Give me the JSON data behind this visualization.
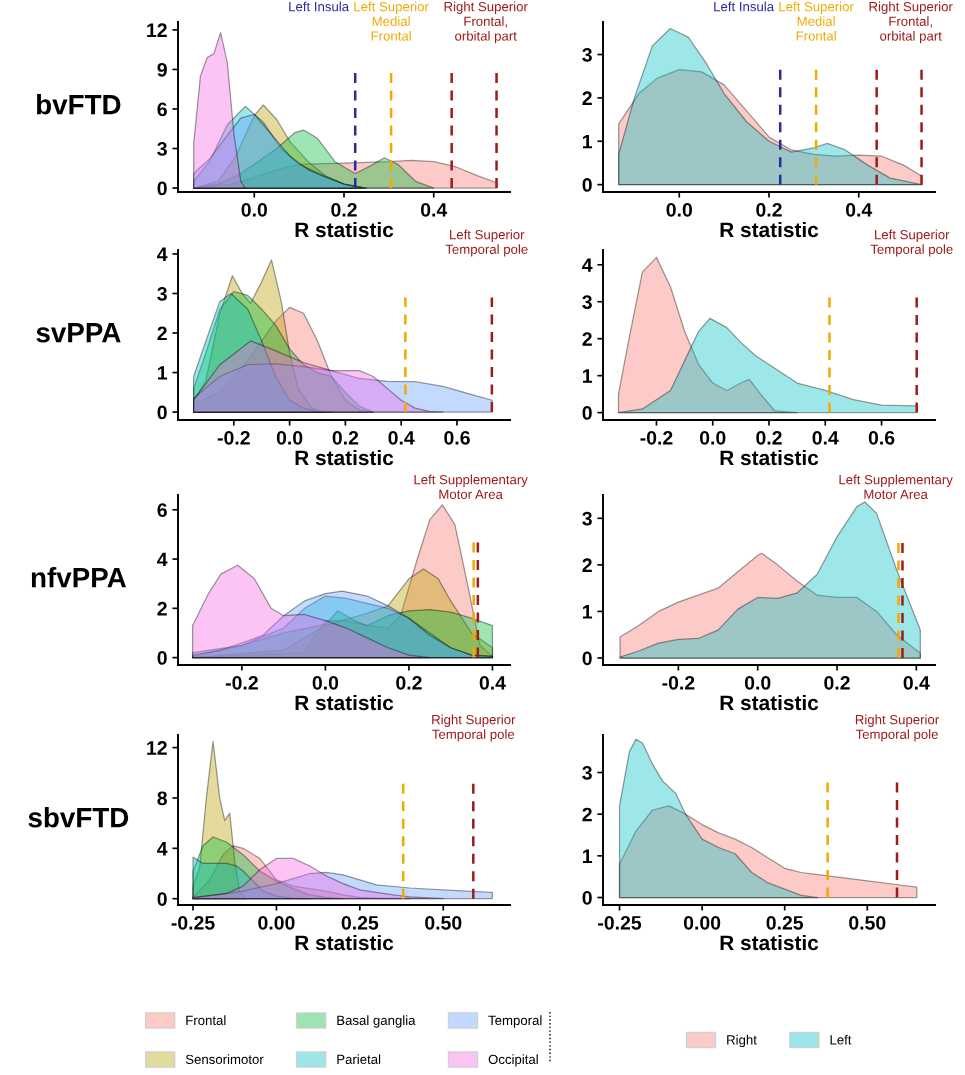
{
  "chart_data": [
    {
      "type": "area",
      "title": "bvFTD",
      "xlabel": "R statistic",
      "xlim": [
        -0.17,
        0.57
      ],
      "xticks": [
        {
          "value": 0,
          "label": "0.0"
        },
        0.2,
        0.4
      ],
      "ylim": [
        -0.3,
        12.6
      ],
      "yticks": [
        0,
        3,
        6,
        9,
        12
      ],
      "legend": "bottom",
      "series": [
        {
          "name": "Frontal",
          "color": "#f8766d",
          "x": [
            -0.135,
            -0.05,
            0.0,
            0.05,
            0.1,
            0.2,
            0.3,
            0.35,
            0.4,
            0.45,
            0.5,
            0.54
          ],
          "values": [
            0,
            0.3,
            0.8,
            1.4,
            1.8,
            1.9,
            2.0,
            2.1,
            2.0,
            1.6,
            0.9,
            0.4
          ]
        },
        {
          "name": "Sensorimotor",
          "color": "#b79f00",
          "x": [
            -0.135,
            -0.08,
            -0.04,
            0.0,
            0.02,
            0.05,
            0.08,
            0.12,
            0.16,
            0.2,
            0.25
          ],
          "values": [
            0,
            0.5,
            2.5,
            5.5,
            6.3,
            5.2,
            3.5,
            2.0,
            0.9,
            0.3,
            0
          ]
        },
        {
          "name": "Basal ganglia",
          "color": "#00ba38",
          "x": [
            -0.135,
            -0.08,
            -0.04,
            0.0,
            0.05,
            0.09,
            0.11,
            0.14,
            0.18,
            0.225,
            0.26,
            0.29,
            0.32,
            0.36,
            0.4
          ],
          "values": [
            0,
            0.3,
            0.9,
            1.8,
            3.0,
            4.2,
            4.4,
            3.8,
            2.0,
            1.1,
            1.7,
            2.3,
            1.8,
            0.5,
            0
          ]
        },
        {
          "name": "Parietal",
          "color": "#00bfc4",
          "x": [
            -0.135,
            -0.1,
            -0.06,
            -0.02,
            0.02,
            0.06,
            0.1,
            0.15,
            0.2,
            0.25
          ],
          "values": [
            0.5,
            2.0,
            4.8,
            6.2,
            5.0,
            3.0,
            1.8,
            1.0,
            0.3,
            0
          ]
        },
        {
          "name": "Temporal",
          "color": "#619cff",
          "x": [
            -0.135,
            -0.1,
            -0.06,
            -0.03,
            0.0,
            0.04,
            0.08,
            0.12,
            0.16,
            0.2,
            0.24
          ],
          "values": [
            1.1,
            2.2,
            4.0,
            5.3,
            5.6,
            4.0,
            2.4,
            1.4,
            0.8,
            0.3,
            0
          ]
        },
        {
          "name": "Occipital",
          "color": "#f564e3",
          "x": [
            -0.135,
            -0.12,
            -0.105,
            -0.09,
            -0.075,
            -0.06,
            -0.045,
            -0.03,
            -0.02
          ],
          "values": [
            3.4,
            8.5,
            9.9,
            10.2,
            11.8,
            9.5,
            4.0,
            0.5,
            0
          ]
        }
      ],
      "ref_lines": [
        {
          "axis": "x",
          "value": 0.225,
          "label": "Left Insula",
          "color": "#2b2b9c",
          "line_style": "dashed"
        },
        {
          "axis": "x",
          "value": 0.305,
          "label": "Left Superior\nMedial\nFrontal",
          "color": "#f2a900",
          "line_style": "dashed"
        },
        {
          "axis": "x",
          "value": 0.44,
          "color": "#9e1b1b",
          "line_style": "dashed"
        },
        {
          "axis": "x",
          "value": 0.54,
          "label": "Right Superior\nFrontal,\norbital part",
          "color": "#9e1b1b",
          "line_style": "dashed"
        }
      ]
    },
    {
      "type": "area",
      "xlabel": "R statistic",
      "xlim": [
        -0.17,
        0.57
      ],
      "xticks": [
        {
          "value": 0,
          "label": "0.0"
        },
        0.2,
        0.4
      ],
      "ylim": [
        -0.17,
        3.75
      ],
      "yticks": [
        0,
        1,
        2,
        3
      ],
      "legend": "bottom",
      "series": [
        {
          "name": "Right",
          "color": "#f8766d",
          "x": [
            -0.135,
            -0.09,
            -0.05,
            0.0,
            0.05,
            0.1,
            0.15,
            0.2,
            0.25,
            0.3,
            0.35,
            0.4,
            0.45,
            0.5,
            0.54
          ],
          "values": [
            1.4,
            2.1,
            2.45,
            2.65,
            2.6,
            2.3,
            1.7,
            1.1,
            0.8,
            0.7,
            0.66,
            0.68,
            0.66,
            0.45,
            0.2
          ]
        },
        {
          "name": "Left",
          "color": "#00bfc4",
          "x": [
            -0.135,
            -0.1,
            -0.06,
            -0.02,
            0.02,
            0.06,
            0.1,
            0.15,
            0.2,
            0.25,
            0.3,
            0.33,
            0.37,
            0.42,
            0.47,
            0.54
          ],
          "values": [
            0.7,
            2.0,
            3.2,
            3.6,
            3.4,
            2.8,
            2.1,
            1.45,
            1.0,
            0.75,
            0.85,
            0.95,
            0.8,
            0.45,
            0.15,
            0.0
          ]
        }
      ],
      "ref_lines": [
        {
          "axis": "x",
          "value": 0.225,
          "label": "Left Insula",
          "color": "#2b2b9c",
          "line_style": "dashed"
        },
        {
          "axis": "x",
          "value": 0.305,
          "label": "Left Superior\nMedial\nFrontal",
          "color": "#f2a900",
          "line_style": "dashed"
        },
        {
          "axis": "x",
          "value": 0.44,
          "color": "#9e1b1b",
          "line_style": "dashed"
        },
        {
          "axis": "x",
          "value": 0.54,
          "label": "Right Superior\nFrontal,\norbital part",
          "color": "#9e1b1b",
          "line_style": "dashed"
        }
      ]
    },
    {
      "type": "area",
      "title": "svPPA",
      "xlabel": "R statistic",
      "xlim": [
        -0.4,
        0.79
      ],
      "xticks": [
        -0.2,
        {
          "value": 0,
          "label": "0.0"
        },
        0.2,
        0.4,
        0.6
      ],
      "ylim": [
        -0.2,
        4.1
      ],
      "yticks": [
        0,
        1,
        2,
        3,
        4
      ],
      "series": [
        {
          "name": "Frontal",
          "color": "#f8766d",
          "x": [
            -0.344,
            -0.25,
            -0.15,
            -0.1,
            -0.05,
            0.0,
            0.05,
            0.1,
            0.15,
            0.2,
            0.25,
            0.3
          ],
          "values": [
            0.2,
            0.5,
            1.3,
            1.8,
            2.3,
            2.65,
            2.5,
            1.8,
            0.9,
            0.3,
            0.05,
            0
          ]
        },
        {
          "name": "Sensorimotor",
          "color": "#b79f00",
          "x": [
            -0.344,
            -0.3,
            -0.25,
            -0.205,
            -0.17,
            -0.14,
            -0.1,
            -0.065,
            -0.03,
            0.0,
            0.03,
            0.08,
            0.12
          ],
          "values": [
            0.3,
            0.8,
            2.5,
            3.45,
            3.0,
            2.75,
            3.3,
            3.85,
            2.8,
            1.5,
            0.6,
            0.1,
            0
          ]
        },
        {
          "name": "Basal ganglia",
          "color": "#00ba38",
          "x": [
            -0.344,
            -0.3,
            -0.25,
            -0.2,
            -0.15,
            -0.1,
            -0.05,
            0.0,
            0.05,
            0.1,
            0.15,
            0.2,
            0.25,
            0.3
          ],
          "values": [
            0.6,
            1.5,
            2.6,
            3.05,
            2.95,
            2.6,
            2.2,
            1.6,
            1.2,
            1.0,
            0.9,
            0.5,
            0.15,
            0
          ]
        },
        {
          "name": "Parietal",
          "color": "#00bfc4",
          "x": [
            -0.344,
            -0.3,
            -0.25,
            -0.21,
            -0.15,
            -0.1,
            -0.05,
            0.0,
            0.05,
            0.1,
            0.15
          ],
          "values": [
            0.9,
            1.8,
            2.8,
            3.0,
            2.6,
            1.8,
            0.9,
            0.3,
            0.1,
            0.02,
            0
          ]
        },
        {
          "name": "Temporal",
          "color": "#619cff",
          "x": [
            -0.344,
            -0.25,
            -0.15,
            -0.05,
            0.05,
            0.15,
            0.25,
            0.35,
            0.45,
            0.55,
            0.65,
            0.726
          ],
          "values": [
            0.35,
            0.9,
            1.2,
            1.22,
            1.15,
            1.05,
            0.85,
            0.78,
            0.77,
            0.65,
            0.45,
            0.3
          ]
        },
        {
          "name": "Occipital",
          "color": "#f564e3",
          "x": [
            -0.344,
            -0.25,
            -0.14,
            -0.05,
            0.05,
            0.15,
            0.25,
            0.3,
            0.35,
            0.4,
            0.45,
            0.5,
            0.55
          ],
          "values": [
            0.3,
            1.2,
            1.8,
            1.55,
            1.25,
            1.05,
            1.05,
            0.9,
            0.6,
            0.3,
            0.1,
            0.02,
            0
          ]
        }
      ],
      "ref_lines": [
        {
          "axis": "x",
          "value": 0.415,
          "color": "#f2a900",
          "line_style": "dashed"
        },
        {
          "axis": "x",
          "value": 0.725,
          "label": "Left Superior\nTemporal pole",
          "color": "#9e1b1b",
          "line_style": "dashed"
        }
      ]
    },
    {
      "type": "area",
      "xlabel": "R statistic",
      "xlim": [
        -0.39,
        0.79
      ],
      "xticks": [
        -0.2,
        {
          "value": 0,
          "label": "0.0"
        },
        0.2,
        0.4,
        0.6
      ],
      "ylim": [
        -0.2,
        4.4
      ],
      "yticks": [
        0,
        1,
        2,
        3,
        4
      ],
      "series": [
        {
          "name": "Right",
          "color": "#f8766d",
          "x": [
            -0.335,
            -0.3,
            -0.25,
            -0.2,
            -0.15,
            -0.1,
            -0.05,
            0.0,
            0.05,
            0.1,
            0.13,
            0.17,
            0.22,
            0.3
          ],
          "values": [
            0.5,
            1.9,
            3.8,
            4.2,
            3.4,
            2.2,
            1.3,
            0.8,
            0.6,
            0.8,
            0.9,
            0.5,
            0.05,
            0
          ]
        },
        {
          "name": "Left",
          "color": "#00bfc4",
          "x": [
            -0.335,
            -0.25,
            -0.15,
            -0.1,
            -0.05,
            -0.01,
            0.05,
            0.1,
            0.15,
            0.2,
            0.3,
            0.4,
            0.5,
            0.6,
            0.725
          ],
          "values": [
            0,
            0.1,
            0.6,
            1.4,
            2.2,
            2.55,
            2.3,
            1.9,
            1.55,
            1.3,
            0.8,
            0.6,
            0.35,
            0.2,
            0.18
          ]
        }
      ],
      "ref_lines": [
        {
          "axis": "x",
          "value": 0.415,
          "color": "#f2a900",
          "line_style": "dashed"
        },
        {
          "axis": "x",
          "value": 0.725,
          "label": "Left Superior\nTemporal pole",
          "color": "#9e1b1b",
          "line_style": "dashed"
        }
      ]
    },
    {
      "type": "area",
      "title": "nfvPPA",
      "xlabel": "R statistic",
      "xlim": [
        -0.353,
        0.442
      ],
      "xticks": [
        -0.2,
        {
          "value": 0,
          "label": "0.0"
        },
        0.2,
        0.4
      ],
      "ylim": [
        -0.3,
        6.6
      ],
      "yticks": [
        0,
        2,
        4,
        6
      ],
      "series": [
        {
          "name": "Frontal",
          "color": "#f8766d",
          "x": [
            -0.318,
            -0.05,
            0.0,
            0.05,
            0.1,
            0.15,
            0.18,
            0.22,
            0.25,
            0.28,
            0.31,
            0.34,
            0.37,
            0.4
          ],
          "values": [
            0,
            0.2,
            1.5,
            1.5,
            1.3,
            1.2,
            1.7,
            4.0,
            5.6,
            6.2,
            5.4,
            3.0,
            0.5,
            0.05
          ]
        },
        {
          "name": "Sensorimotor",
          "color": "#b79f00",
          "x": [
            -0.318,
            -0.1,
            0.0,
            0.1,
            0.15,
            0.2,
            0.235,
            0.27,
            0.3,
            0.35,
            0.4
          ],
          "values": [
            0,
            0.3,
            1.3,
            1.8,
            2.1,
            3.2,
            3.6,
            3.2,
            2.3,
            1.0,
            0.4
          ]
        },
        {
          "name": "Basal ganglia",
          "color": "#00ba38",
          "x": [
            -0.318,
            -0.2,
            -0.1,
            0.0,
            0.03,
            0.07,
            0.1,
            0.15,
            0.2,
            0.25,
            0.3,
            0.35,
            0.4
          ],
          "values": [
            0.05,
            0.5,
            1.0,
            1.35,
            1.9,
            1.5,
            1.3,
            1.7,
            1.9,
            1.95,
            1.85,
            1.6,
            1.3
          ]
        },
        {
          "name": "Parietal",
          "color": "#00bfc4",
          "x": [
            -0.318,
            -0.2,
            -0.1,
            -0.05,
            0.0,
            0.05,
            0.1,
            0.15,
            0.2,
            0.25,
            0.3,
            0.35,
            0.4
          ],
          "values": [
            0.2,
            0.5,
            1.2,
            2.0,
            2.5,
            2.4,
            2.2,
            2.0,
            1.6,
            1.0,
            0.4,
            0.1,
            0.05
          ]
        },
        {
          "name": "Temporal",
          "color": "#619cff",
          "x": [
            -0.318,
            -0.25,
            -0.15,
            -0.1,
            -0.05,
            0.0,
            0.04,
            0.1,
            0.15,
            0.2,
            0.25,
            0.3,
            0.35,
            0.4
          ],
          "values": [
            0.1,
            0.3,
            0.9,
            1.7,
            2.3,
            2.6,
            2.7,
            2.5,
            2.1,
            1.6,
            0.9,
            0.4,
            0.1,
            0.05
          ]
        },
        {
          "name": "Occipital",
          "color": "#f564e3",
          "x": [
            -0.318,
            -0.28,
            -0.25,
            -0.21,
            -0.17,
            -0.13,
            -0.1,
            -0.05,
            0.0,
            0.05,
            0.1,
            0.15,
            0.2,
            0.25
          ],
          "values": [
            1.3,
            2.6,
            3.4,
            3.75,
            3.2,
            2.0,
            1.7,
            1.75,
            1.5,
            1.2,
            0.8,
            0.4,
            0.1,
            0
          ]
        }
      ],
      "ref_lines": [
        {
          "axis": "x",
          "value": 0.355,
          "color": "#f2a900",
          "line_style": "dashed"
        },
        {
          "axis": "x",
          "value": 0.365,
          "label": "Left Supplementary\nMotor Area",
          "color": "#9e1b1b",
          "line_style": "dashed"
        }
      ]
    },
    {
      "type": "area",
      "xlabel": "R statistic",
      "xlim": [
        -0.39,
        0.447
      ],
      "xticks": [
        -0.2,
        {
          "value": 0,
          "label": "0.0"
        },
        0.2,
        0.4
      ],
      "ylim": [
        -0.15,
        3.5
      ],
      "yticks": [
        0,
        1,
        2,
        3
      ],
      "series": [
        {
          "name": "Right",
          "color": "#f8766d",
          "x": [
            -0.347,
            -0.3,
            -0.25,
            -0.2,
            -0.15,
            -0.1,
            -0.05,
            0.0,
            0.01,
            0.05,
            0.1,
            0.15,
            0.2,
            0.25,
            0.3,
            0.35,
            0.41
          ],
          "values": [
            0.45,
            0.7,
            1.0,
            1.2,
            1.35,
            1.5,
            1.85,
            2.2,
            2.25,
            2.0,
            1.65,
            1.35,
            1.3,
            1.3,
            1.0,
            0.5,
            0.1
          ]
        },
        {
          "name": "Left",
          "color": "#00bfc4",
          "x": [
            -0.347,
            -0.3,
            -0.25,
            -0.2,
            -0.15,
            -0.1,
            -0.05,
            0.0,
            0.05,
            0.1,
            0.15,
            0.2,
            0.25,
            0.27,
            0.3,
            0.35,
            0.41
          ],
          "values": [
            0.02,
            0.15,
            0.32,
            0.4,
            0.42,
            0.6,
            1.05,
            1.3,
            1.28,
            1.4,
            1.8,
            2.6,
            3.25,
            3.35,
            3.1,
            1.9,
            0.6
          ]
        }
      ],
      "ref_lines": [
        {
          "axis": "x",
          "value": 0.355,
          "color": "#f2a900",
          "line_style": "dashed"
        },
        {
          "axis": "x",
          "value": 0.365,
          "label": "Left Supplementary\nMotor Area",
          "color": "#9e1b1b",
          "line_style": "dashed"
        }
      ]
    },
    {
      "type": "area",
      "title": "sbvFTD",
      "xlabel": "R statistic",
      "xlim": [
        -0.295,
        0.7
      ],
      "xticks": [
        {
          "value": -0.25,
          "label": "-0.25"
        },
        {
          "value": 0,
          "label": "0.00"
        },
        {
          "value": 0.25,
          "label": "0.25"
        },
        {
          "value": 0.5,
          "label": "0.50"
        }
      ],
      "ylim": [
        -0.5,
        13.0
      ],
      "yticks": [
        0,
        4,
        8,
        12
      ],
      "series": [
        {
          "name": "Frontal",
          "color": "#f8766d",
          "x": [
            -0.25,
            -0.2,
            -0.16,
            -0.13,
            -0.1,
            -0.05,
            0.0,
            0.05,
            0.1,
            0.15,
            0.2,
            0.25,
            0.3,
            0.4
          ],
          "values": [
            0.1,
            1.5,
            3.5,
            4.2,
            4.0,
            3.2,
            1.5,
            1.0,
            0.8,
            0.6,
            0.3,
            0.1,
            0.05,
            0
          ]
        },
        {
          "name": "Sensorimotor",
          "color": "#b79f00",
          "x": [
            -0.25,
            -0.23,
            -0.21,
            -0.19,
            -0.17,
            -0.155,
            -0.14,
            -0.125,
            -0.11,
            -0.09
          ],
          "values": [
            1.0,
            2.5,
            8.0,
            12.5,
            8.0,
            6.2,
            6.8,
            3.0,
            0.5,
            0
          ]
        },
        {
          "name": "Basal ganglia",
          "color": "#00ba38",
          "x": [
            -0.25,
            -0.22,
            -0.19,
            -0.15,
            -0.1,
            -0.05,
            0.0,
            0.05,
            0.1,
            0.15,
            0.2
          ],
          "values": [
            2.2,
            4.2,
            4.9,
            4.5,
            3.5,
            2.2,
            1.4,
            0.8,
            0.3,
            0.1,
            0
          ]
        },
        {
          "name": "Parietal",
          "color": "#00bfc4",
          "x": [
            -0.25,
            -0.22,
            -0.18,
            -0.15,
            -0.12,
            -0.1,
            -0.07,
            -0.04,
            0.0,
            0.05,
            0.1
          ],
          "values": [
            3.3,
            2.8,
            2.8,
            2.8,
            2.6,
            2.2,
            1.4,
            0.6,
            0.2,
            0.05,
            0
          ]
        },
        {
          "name": "Temporal",
          "color": "#619cff",
          "x": [
            -0.25,
            -0.1,
            0.0,
            0.05,
            0.1,
            0.15,
            0.2,
            0.25,
            0.3,
            0.4,
            0.5,
            0.647
          ],
          "values": [
            0.05,
            0.6,
            1.2,
            1.6,
            2.0,
            2.1,
            1.9,
            1.5,
            1.1,
            0.85,
            0.7,
            0.5
          ]
        },
        {
          "name": "Occipital",
          "color": "#f564e3",
          "x": [
            -0.25,
            -0.15,
            -0.1,
            -0.05,
            0.0,
            0.05,
            0.1,
            0.15,
            0.2,
            0.25,
            0.3,
            0.35,
            0.4,
            0.5
          ],
          "values": [
            0.1,
            0.4,
            1.0,
            2.3,
            3.2,
            3.2,
            2.6,
            1.8,
            1.2,
            0.7,
            0.5,
            0.3,
            0.15,
            0
          ]
        }
      ],
      "ref_lines": [
        {
          "axis": "x",
          "value": 0.38,
          "color": "#f2a900",
          "line_style": "dashed"
        },
        {
          "axis": "x",
          "value": 0.59,
          "label": "Right Superior\nTemporal pole",
          "color": "#9e1b1b",
          "line_style": "dashed"
        }
      ]
    },
    {
      "type": "area",
      "xlabel": "R statistic",
      "xlim": [
        -0.3,
        0.705
      ],
      "xticks": [
        {
          "value": -0.25,
          "label": "-0.25"
        },
        {
          "value": 0,
          "label": "0.00"
        },
        {
          "value": 0.25,
          "label": "0.25"
        },
        {
          "value": 0.5,
          "label": "0.50"
        }
      ],
      "ylim": [
        -0.18,
        3.9
      ],
      "yticks": [
        0,
        1,
        2,
        3
      ],
      "series": [
        {
          "name": "Right",
          "color": "#f8766d",
          "x": [
            -0.25,
            -0.2,
            -0.15,
            -0.1,
            -0.05,
            0.0,
            0.05,
            0.1,
            0.15,
            0.2,
            0.25,
            0.3,
            0.35,
            0.4,
            0.5,
            0.6,
            0.65
          ],
          "values": [
            0.8,
            1.6,
            2.1,
            2.2,
            2.0,
            1.75,
            1.55,
            1.4,
            1.2,
            0.95,
            0.7,
            0.6,
            0.55,
            0.5,
            0.4,
            0.3,
            0.25
          ]
        },
        {
          "name": "Left",
          "color": "#00bfc4",
          "x": [
            -0.25,
            -0.22,
            -0.2,
            -0.18,
            -0.15,
            -0.12,
            -0.08,
            -0.05,
            0.0,
            0.05,
            0.1,
            0.15,
            0.2,
            0.25,
            0.3,
            0.35
          ],
          "values": [
            2.2,
            3.5,
            3.8,
            3.7,
            3.2,
            2.8,
            2.5,
            2.0,
            1.4,
            1.2,
            1.05,
            0.6,
            0.35,
            0.2,
            0.05,
            0
          ]
        }
      ],
      "ref_lines": [
        {
          "axis": "x",
          "value": 0.38,
          "color": "#f2a900",
          "line_style": "dashed"
        },
        {
          "axis": "x",
          "value": 0.59,
          "label": "Right Superior\nTemporal pole",
          "color": "#9e1b1b",
          "line_style": "dashed"
        }
      ]
    }
  ]
}
